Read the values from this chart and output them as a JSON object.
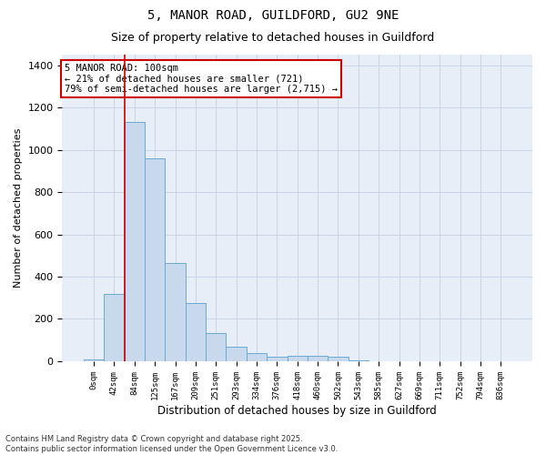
{
  "title1": "5, MANOR ROAD, GUILDFORD, GU2 9NE",
  "title2": "Size of property relative to detached houses in Guildford",
  "xlabel": "Distribution of detached houses by size in Guildford",
  "ylabel": "Number of detached properties",
  "footer1": "Contains HM Land Registry data © Crown copyright and database right 2025.",
  "footer2": "Contains public sector information licensed under the Open Government Licence v3.0.",
  "annotation_line1": "5 MANOR ROAD: 100sqm",
  "annotation_line2": "← 21% of detached houses are smaller (721)",
  "annotation_line3": "79% of semi-detached houses are larger (2,715) →",
  "bar_color": "#c8d9ee",
  "bar_edge_color": "#6aaad4",
  "grid_color": "#c8d4e8",
  "background_color": "#e8eef8",
  "red_line_color": "#cc0000",
  "annotation_box_color": "#cc0000",
  "categories": [
    "0sqm",
    "42sqm",
    "84sqm",
    "125sqm",
    "167sqm",
    "209sqm",
    "251sqm",
    "293sqm",
    "334sqm",
    "376sqm",
    "418sqm",
    "460sqm",
    "502sqm",
    "543sqm",
    "585sqm",
    "627sqm",
    "669sqm",
    "711sqm",
    "752sqm",
    "794sqm",
    "836sqm"
  ],
  "values": [
    10,
    320,
    1130,
    960,
    465,
    275,
    135,
    68,
    40,
    22,
    25,
    25,
    20,
    5,
    2,
    1,
    1,
    1,
    0,
    0,
    0
  ],
  "red_line_x": 1.5,
  "ylim": [
    0,
    1450
  ],
  "yticks": [
    0,
    200,
    400,
    600,
    800,
    1000,
    1200,
    1400
  ]
}
